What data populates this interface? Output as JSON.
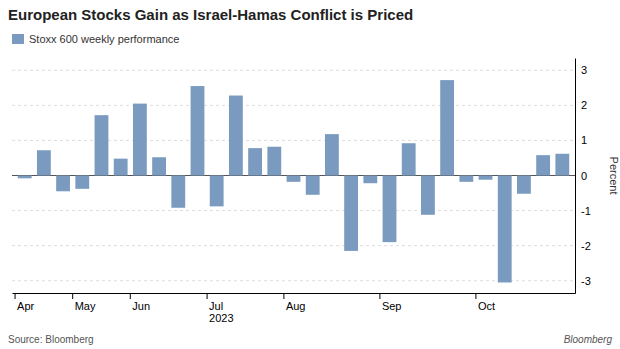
{
  "chart_data": {
    "type": "bar",
    "title": "European Stocks Gain as Israel-Hamas Conflict is Priced",
    "categories": [
      "Apr",
      null,
      null,
      "May",
      null,
      null,
      "Jun",
      null,
      null,
      null,
      "Jul\n2023",
      null,
      null,
      null,
      "Aug",
      null,
      null,
      null,
      null,
      "Sep",
      null,
      null,
      null,
      null,
      "Oct",
      null,
      null,
      null,
      null
    ],
    "series": [
      {
        "name": "Stoxx 600 weekly performance",
        "color": "#7a9bbf",
        "values": [
          -0.08,
          0.72,
          -0.45,
          -0.38,
          1.72,
          0.48,
          2.05,
          0.52,
          -0.92,
          2.55,
          -0.88,
          2.28,
          0.78,
          0.82,
          -0.18,
          -0.55,
          1.18,
          -2.15,
          -0.22,
          -1.9,
          0.92,
          -1.12,
          2.72,
          -0.18,
          -0.12,
          -3.05,
          -0.52,
          0.58,
          0.62
        ]
      }
    ],
    "ylabel": "Percent",
    "ylim": [
      -3.35,
      3.35
    ],
    "yticks": [
      -3,
      -2,
      -1,
      0,
      1,
      2,
      3
    ],
    "grid": true,
    "legend": "upper left",
    "annotations": [
      "Source: Bloomberg",
      "Bloomberg"
    ]
  }
}
